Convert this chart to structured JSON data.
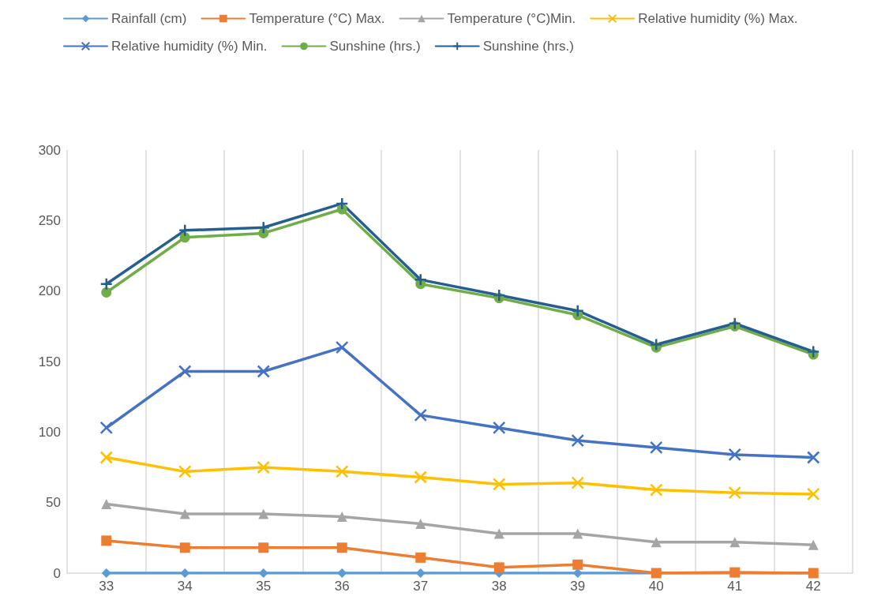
{
  "chart_data": {
    "type": "line",
    "categories": [
      "33",
      "34",
      "35",
      "36",
      "37",
      "38",
      "39",
      "40",
      "41",
      "42"
    ],
    "ylim": [
      0,
      300
    ],
    "yticks": [
      0,
      50,
      100,
      150,
      200,
      250,
      300
    ],
    "grid": "x",
    "legend": "top",
    "series": [
      {
        "name": "Rainfall (cm)",
        "color": "#5b9bd5",
        "marker": "diamond",
        "values": [
          0,
          0,
          0,
          0,
          0,
          0,
          0,
          0,
          0,
          0
        ]
      },
      {
        "name": "Temperature (°C) Max.",
        "color": "#ed7d31",
        "marker": "square",
        "values": [
          23,
          18,
          18,
          18,
          11,
          4,
          6,
          0,
          0.5,
          0
        ]
      },
      {
        "name": "Temperature (°C)Min.",
        "color": "#a5a5a5",
        "marker": "triangle",
        "values": [
          49,
          42,
          42,
          40,
          35,
          28,
          28,
          22,
          22,
          20
        ]
      },
      {
        "name": "Relative humidity (%) Max.",
        "color": "#ffc000",
        "marker": "cross",
        "values": [
          82,
          72,
          75,
          72,
          68,
          63,
          64,
          59,
          57,
          56
        ]
      },
      {
        "name": "Relative humidity (%) Min.",
        "color": "#4472c4",
        "marker": "cross",
        "values": [
          103,
          143,
          143,
          160,
          112,
          103,
          94,
          89,
          84,
          82
        ]
      },
      {
        "name": "Sunshine (hrs.)",
        "color": "#70ad47",
        "marker": "circle",
        "values": [
          199,
          238,
          241,
          258,
          205,
          195,
          183,
          160,
          175,
          155
        ]
      },
      {
        "name": "Sunshine (hrs.)",
        "color": "#255e91",
        "marker": "plus",
        "values": [
          205,
          243,
          245,
          262,
          208,
          197,
          186,
          162,
          177,
          157
        ]
      }
    ]
  }
}
